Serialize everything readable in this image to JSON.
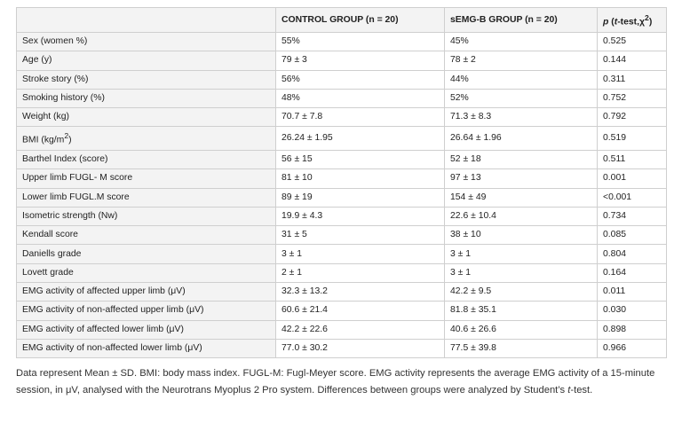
{
  "table": {
    "headers": [
      "",
      "CONTROL GROUP (n = 20)",
      "sEMG-B GROUP (n = 20)",
      "p (t-test,χ²)"
    ],
    "header_p": {
      "symbol": "p",
      "rest": " (",
      "t": "t",
      "tail": "-test,χ",
      "sup": "2",
      "close": ")"
    },
    "rows": [
      {
        "label": "Sex (women %)",
        "control": "55%",
        "semg": "45%",
        "p": "0.525"
      },
      {
        "label": "Age (y)",
        "control": "79 ± 3",
        "semg": "78 ± 2",
        "p": "0.144"
      },
      {
        "label": "Stroke story (%)",
        "control": "56%",
        "semg": "44%",
        "p": "0.311"
      },
      {
        "label": "Smoking history (%)",
        "control": "48%",
        "semg": "52%",
        "p": "0.752"
      },
      {
        "label": "Weight (kg)",
        "control": "70.7 ± 7.8",
        "semg": "71.3 ± 8.3",
        "p": "0.792"
      },
      {
        "label_pre": "BMI (kg/m",
        "label_sup": "2",
        "label_post": ")",
        "control": "26.24 ± 1.95",
        "semg": "26.64 ± 1.96",
        "p": "0.519"
      },
      {
        "label": "Barthel Index (score)",
        "control": "56 ± 15",
        "semg": "52 ± 18",
        "p": "0.511"
      },
      {
        "label": "Upper limb FUGL- M score",
        "control": "81 ± 10",
        "semg": "97 ± 13",
        "p": "0.001"
      },
      {
        "label": "Lower limb FUGL.M score",
        "control": "89 ± 19",
        "semg": "154 ± 49",
        "p": "<0.001"
      },
      {
        "label": "Isometric strength (Nw)",
        "control": "19.9 ± 4.3",
        "semg": "22.6 ± 10.4",
        "p": "0.734"
      },
      {
        "label": "Kendall score",
        "control": "31 ± 5",
        "semg": "38 ± 10",
        "p": "0.085"
      },
      {
        "label": "Daniells grade",
        "control": "3 ± 1",
        "semg": "3 ± 1",
        "p": "0.804"
      },
      {
        "label": "Lovett grade",
        "control": "2 ± 1",
        "semg": "3 ± 1",
        "p": "0.164"
      },
      {
        "label": "EMG activity of affected upper limb (μV)",
        "control": "32.3 ± 13.2",
        "semg": "42.2 ± 9.5",
        "p": "0.011"
      },
      {
        "label": "EMG activity of non-affected upper limb (μV)",
        "control": "60.6 ± 21.4",
        "semg": "81.8 ± 35.1",
        "p": "0.030"
      },
      {
        "label": "EMG activity of affected lower limb (μV)",
        "control": "42.2 ± 22.6",
        "semg": "40.6 ± 26.6",
        "p": "0.898"
      },
      {
        "label": "EMG activity of non-affected lower limb (μV)",
        "control": "77.0 ± 30.2",
        "semg": "77.5 ± 39.8",
        "p": "0.966"
      }
    ]
  },
  "caption": {
    "main": "Data represent Mean ± SD. BMI: body mass index. FUGL-M: Fugl-Meyer score. EMG activity represents the average EMG activity of a 15-minute session, in μV, analysed with the Neurotrans Myoplus 2 Pro system. Differences between groups were analyzed by Student’s ",
    "t": "t",
    "end": "-test."
  }
}
